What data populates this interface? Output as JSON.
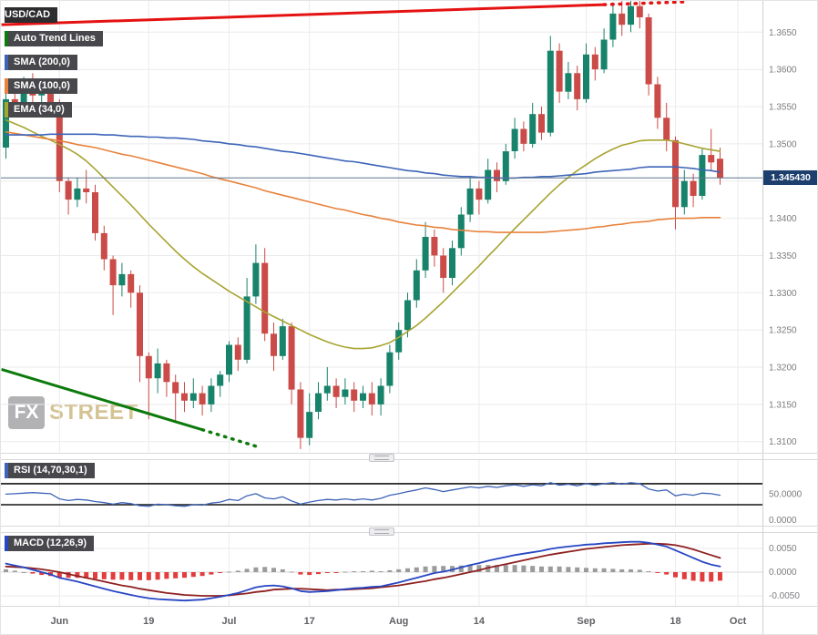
{
  "watermark": {
    "fx": "FX",
    "street": "STREET"
  },
  "colors": {
    "candle_up": "#17836a",
    "candle_down": "#ca4b47",
    "sma200": "#3d64b8",
    "sma100": "#e8823c",
    "ema34": "#a8a432",
    "trend_resistance": "#e51212",
    "trend_support": "#0c7a0c",
    "rsi_line": "#3d64b8",
    "rsi_level": "#141414",
    "macd_line": "#2746c4",
    "macd_signal": "#8f2020",
    "hist_pos": "#9b9b9b",
    "hist_neg": "#e23c3c",
    "price_line": "#5b748c",
    "tag_bg": "#1d3f6e",
    "grid": "#ebebee",
    "axis_text": "#7c7c80",
    "time_text": "#606065"
  },
  "chart_data": {
    "type": "candlestick",
    "symbol": "USD/CAD",
    "current_price": "1.345430",
    "current_price_value": 1.34543,
    "legend_items": [
      {
        "label": "USD/CAD",
        "bar": null,
        "bg": "#2d2d30"
      },
      {
        "label": "Auto Trend Lines",
        "bar": "#0c7a0c",
        "bg": "#48484c"
      },
      {
        "label": "SMA (200,0)",
        "bar": "#3d64b8",
        "bg": "#48484c"
      },
      {
        "label": "SMA (100,0)",
        "bar": "#e8823c",
        "bg": "#48484c"
      },
      {
        "label": "EMA (34,0)",
        "bar": "#a8a432",
        "bg": "#48484c"
      }
    ],
    "y_ticks": [
      "1.3650",
      "1.3600",
      "1.3550",
      "1.3500",
      "1.3450",
      "1.3400",
      "1.3350",
      "1.3300",
      "1.3250",
      "1.3200",
      "1.3150",
      "1.3100"
    ],
    "x_ticks": [
      {
        "label": "Jun",
        "bar": 6
      },
      {
        "label": "19",
        "bar": 16
      },
      {
        "label": "Jul",
        "bar": 25
      },
      {
        "label": "17",
        "bar": 34
      },
      {
        "label": "Aug",
        "bar": 44
      },
      {
        "label": "14",
        "bar": 53
      },
      {
        "label": "Sep",
        "bar": 65
      },
      {
        "label": "18",
        "bar": 75
      },
      {
        "label": "Oct",
        "bar": 82
      }
    ],
    "price_range": [
      1.3085,
      1.3692
    ],
    "candles": [
      [
        1.3495,
        1.358,
        1.348,
        1.356
      ],
      [
        1.356,
        1.3585,
        1.354,
        1.355
      ],
      [
        1.355,
        1.359,
        1.3545,
        1.358
      ],
      [
        1.358,
        1.3595,
        1.3555,
        1.3565
      ],
      [
        1.3565,
        1.3585,
        1.355,
        1.3575
      ],
      [
        1.3575,
        1.3585,
        1.3545,
        1.3555
      ],
      [
        1.3555,
        1.356,
        1.3435,
        1.345
      ],
      [
        1.345,
        1.3455,
        1.3405,
        1.3425
      ],
      [
        1.3425,
        1.3455,
        1.3415,
        1.344
      ],
      [
        1.344,
        1.3465,
        1.342,
        1.3435
      ],
      [
        1.3435,
        1.3445,
        1.337,
        1.338
      ],
      [
        1.338,
        1.339,
        1.333,
        1.3345
      ],
      [
        1.3345,
        1.335,
        1.327,
        1.331
      ],
      [
        1.331,
        1.334,
        1.3295,
        1.3325
      ],
      [
        1.3325,
        1.333,
        1.328,
        1.33
      ],
      [
        1.33,
        1.331,
        1.318,
        1.3215
      ],
      [
        1.3215,
        1.322,
        1.313,
        1.3185
      ],
      [
        1.3185,
        1.3225,
        1.3165,
        1.3205
      ],
      [
        1.3205,
        1.321,
        1.316,
        1.318
      ],
      [
        1.318,
        1.319,
        1.3125,
        1.3165
      ],
      [
        1.3165,
        1.318,
        1.314,
        1.3155
      ],
      [
        1.3155,
        1.3185,
        1.3145,
        1.3165
      ],
      [
        1.3165,
        1.3175,
        1.3135,
        1.315
      ],
      [
        1.315,
        1.3185,
        1.314,
        1.3175
      ],
      [
        1.3175,
        1.3195,
        1.316,
        1.319
      ],
      [
        1.319,
        1.3235,
        1.318,
        1.323
      ],
      [
        1.323,
        1.324,
        1.3195,
        1.321
      ],
      [
        1.321,
        1.332,
        1.3205,
        1.3295
      ],
      [
        1.3295,
        1.3365,
        1.3285,
        1.334
      ],
      [
        1.334,
        1.336,
        1.3235,
        1.3245
      ],
      [
        1.3245,
        1.326,
        1.3195,
        1.3215
      ],
      [
        1.3215,
        1.3265,
        1.321,
        1.3255
      ],
      [
        1.3255,
        1.326,
        1.315,
        1.317
      ],
      [
        1.317,
        1.318,
        1.309,
        1.3105
      ],
      [
        1.3105,
        1.3165,
        1.3095,
        1.314
      ],
      [
        1.314,
        1.318,
        1.313,
        1.3165
      ],
      [
        1.3165,
        1.32,
        1.3155,
        1.3175
      ],
      [
        1.3175,
        1.3185,
        1.3145,
        1.316
      ],
      [
        1.316,
        1.3185,
        1.315,
        1.317
      ],
      [
        1.317,
        1.318,
        1.314,
        1.3155
      ],
      [
        1.3155,
        1.3175,
        1.3145,
        1.3165
      ],
      [
        1.3165,
        1.318,
        1.3135,
        1.315
      ],
      [
        1.315,
        1.3185,
        1.3135,
        1.3175
      ],
      [
        1.3175,
        1.323,
        1.3165,
        1.322
      ],
      [
        1.322,
        1.326,
        1.321,
        1.325
      ],
      [
        1.325,
        1.33,
        1.324,
        1.329
      ],
      [
        1.329,
        1.3345,
        1.328,
        1.333
      ],
      [
        1.333,
        1.3395,
        1.332,
        1.3375
      ],
      [
        1.3375,
        1.3385,
        1.3335,
        1.335
      ],
      [
        1.335,
        1.336,
        1.33,
        1.332
      ],
      [
        1.332,
        1.337,
        1.331,
        1.336
      ],
      [
        1.336,
        1.3415,
        1.335,
        1.3405
      ],
      [
        1.3405,
        1.3455,
        1.3395,
        1.344
      ],
      [
        1.344,
        1.345,
        1.3405,
        1.3425
      ],
      [
        1.3425,
        1.348,
        1.342,
        1.3465
      ],
      [
        1.3465,
        1.3475,
        1.3435,
        1.345
      ],
      [
        1.345,
        1.35,
        1.3445,
        1.349
      ],
      [
        1.349,
        1.3535,
        1.348,
        1.352
      ],
      [
        1.352,
        1.353,
        1.349,
        1.35
      ],
      [
        1.35,
        1.3555,
        1.3495,
        1.354
      ],
      [
        1.354,
        1.355,
        1.3505,
        1.3515
      ],
      [
        1.3515,
        1.3645,
        1.351,
        1.3625
      ],
      [
        1.3625,
        1.3635,
        1.3555,
        1.357
      ],
      [
        1.357,
        1.361,
        1.356,
        1.3595
      ],
      [
        1.3595,
        1.3605,
        1.3545,
        1.356
      ],
      [
        1.356,
        1.3635,
        1.3555,
        1.362
      ],
      [
        1.362,
        1.363,
        1.3585,
        1.36
      ],
      [
        1.36,
        1.3655,
        1.3595,
        1.364
      ],
      [
        1.364,
        1.369,
        1.363,
        1.3675
      ],
      [
        1.3675,
        1.3695,
        1.3645,
        1.366
      ],
      [
        1.366,
        1.37,
        1.365,
        1.3685
      ],
      [
        1.3685,
        1.3695,
        1.3655,
        1.367
      ],
      [
        1.367,
        1.3675,
        1.3565,
        1.358
      ],
      [
        1.358,
        1.359,
        1.352,
        1.3535
      ],
      [
        1.3535,
        1.3555,
        1.349,
        1.3505
      ],
      [
        1.3505,
        1.351,
        1.3385,
        1.3415
      ],
      [
        1.3415,
        1.3465,
        1.3405,
        1.345
      ],
      [
        1.345,
        1.346,
        1.3415,
        1.343
      ],
      [
        1.343,
        1.3495,
        1.3425,
        1.3485
      ],
      [
        1.3485,
        1.352,
        1.3465,
        1.3475
      ],
      [
        1.348,
        1.3495,
        1.3445,
        1.34543
      ]
    ],
    "sma200": [
      1.3512,
      1.3512,
      1.3512,
      1.3512,
      1.3512,
      1.3513,
      1.3513,
      1.3513,
      1.3513,
      1.3513,
      1.3513,
      1.3512,
      1.3512,
      1.3511,
      1.351,
      1.351,
      1.3509,
      1.3509,
      1.3508,
      1.3508,
      1.3507,
      1.3506,
      1.3504,
      1.3503,
      1.3502,
      1.35,
      1.3499,
      1.3497,
      1.3496,
      1.3494,
      1.3492,
      1.349,
      1.3489,
      1.3487,
      1.3485,
      1.3483,
      1.3481,
      1.3479,
      1.3477,
      1.3476,
      1.3474,
      1.3472,
      1.347,
      1.3468,
      1.3466,
      1.3464,
      1.3463,
      1.3461,
      1.346,
      1.3458,
      1.3457,
      1.3456,
      1.3456,
      1.3455,
      1.3455,
      1.3454,
      1.3454,
      1.3454,
      1.3455,
      1.3455,
      1.3456,
      1.3456,
      1.3457,
      1.3458,
      1.3459,
      1.346,
      1.3462,
      1.3463,
      1.3464,
      1.3465,
      1.3466,
      1.3468,
      1.3469,
      1.3469,
      1.3469,
      1.3469,
      1.3468,
      1.3467,
      1.3465,
      1.3464,
      1.3462
    ],
    "sma100": [
      1.3516,
      1.3514,
      1.3512,
      1.351,
      1.3508,
      1.3506,
      1.3504,
      1.3502,
      1.3499,
      1.3497,
      1.3495,
      1.3492,
      1.3489,
      1.3486,
      1.3484,
      1.3481,
      1.3478,
      1.3475,
      1.3472,
      1.3469,
      1.3466,
      1.3463,
      1.346,
      1.3456,
      1.3453,
      1.345,
      1.3447,
      1.3444,
      1.3441,
      1.3437,
      1.3434,
      1.3431,
      1.3428,
      1.3425,
      1.3422,
      1.3419,
      1.3416,
      1.3413,
      1.3411,
      1.3408,
      1.3405,
      1.3403,
      1.34,
      1.3398,
      1.3395,
      1.3393,
      1.3391,
      1.339,
      1.3388,
      1.3387,
      1.3385,
      1.3384,
      1.3383,
      1.3382,
      1.3382,
      1.3381,
      1.3381,
      1.3381,
      1.3381,
      1.3381,
      1.3381,
      1.3382,
      1.3383,
      1.3384,
      1.3385,
      1.3386,
      1.3388,
      1.3389,
      1.3391,
      1.3392,
      1.3394,
      1.3395,
      1.3396,
      1.3398,
      1.3399,
      1.34,
      1.34,
      1.34,
      1.3401,
      1.3401,
      1.3401
    ],
    "ema34": [
      1.3532,
      1.3527,
      1.3522,
      1.3516,
      1.351,
      1.3505,
      1.3499,
      1.3493,
      1.3486,
      1.3477,
      1.3466,
      1.3454,
      1.3442,
      1.343,
      1.3418,
      1.3405,
      1.3392,
      1.338,
      1.3368,
      1.3356,
      1.3345,
      1.3335,
      1.3326,
      1.3318,
      1.331,
      1.3302,
      1.3295,
      1.3288,
      1.3281,
      1.3274,
      1.3268,
      1.3262,
      1.3256,
      1.325,
      1.3244,
      1.3239,
      1.3234,
      1.323,
      1.3227,
      1.3225,
      1.3225,
      1.3226,
      1.3229,
      1.3233,
      1.324,
      1.3248,
      1.3256,
      1.3266,
      1.3277,
      1.3288,
      1.33,
      1.3312,
      1.3324,
      1.3336,
      1.3349,
      1.3361,
      1.3374,
      1.3386,
      1.3398,
      1.341,
      1.3422,
      1.3434,
      1.3445,
      1.3455,
      1.3464,
      1.3472,
      1.348,
      1.3487,
      1.3493,
      1.3498,
      1.3501,
      1.3504,
      1.3505,
      1.3505,
      1.3505,
      1.3503,
      1.35,
      1.3497,
      1.3494,
      1.3492,
      1.349
    ],
    "trend_lines": [
      {
        "name": "resistance",
        "color": "#e51212",
        "solid": [
          [
            -0.5,
            1.366
          ],
          [
            67,
            1.3687
          ]
        ],
        "dashed": [
          [
            67,
            1.3687
          ],
          [
            76.5,
            1.3691
          ]
        ]
      },
      {
        "name": "support",
        "color": "#0c7a0c",
        "solid": [
          [
            -0.5,
            1.3197
          ],
          [
            22,
            1.3116
          ]
        ],
        "dashed": [
          [
            22,
            1.3116
          ],
          [
            28.5,
            1.3092
          ]
        ]
      }
    ],
    "rsi": {
      "label": "RSI (14,70,30,1)",
      "levels": [
        70,
        30
      ],
      "axis_labels": [
        {
          "text": "50.0000",
          "value": 50
        },
        {
          "text": "0.0000",
          "value": 0
        }
      ],
      "values": [
        50,
        51,
        52,
        53,
        52,
        51,
        41,
        38,
        40,
        39,
        36,
        34,
        31,
        34,
        32,
        28,
        27,
        31,
        30,
        28,
        27,
        30,
        29,
        33,
        35,
        40,
        38,
        47,
        51,
        43,
        41,
        45,
        37,
        31,
        35,
        38,
        40,
        39,
        41,
        39,
        41,
        39,
        42,
        48,
        51,
        55,
        58,
        62,
        59,
        55,
        58,
        61,
        64,
        62,
        65,
        63,
        66,
        68,
        65,
        68,
        66,
        72,
        67,
        69,
        66,
        70,
        67,
        70,
        72,
        69,
        72,
        70,
        60,
        56,
        58,
        47,
        50,
        48,
        52,
        51,
        48
      ]
    },
    "macd": {
      "label": "MACD (12,26,9)",
      "axis_labels": [
        {
          "text": "0.0050",
          "value": 0.005
        },
        {
          "text": "0.0000",
          "value": 0
        },
        {
          "text": "-0.0050",
          "value": -0.005
        }
      ],
      "line": [
        0.0018,
        0.0014,
        0.001,
        0.0005,
        0.0,
        -0.0005,
        -0.0012,
        -0.0016,
        -0.002,
        -0.0025,
        -0.003,
        -0.0035,
        -0.004,
        -0.0044,
        -0.0048,
        -0.0052,
        -0.0055,
        -0.0057,
        -0.0058,
        -0.0059,
        -0.006,
        -0.0059,
        -0.0058,
        -0.0055,
        -0.0052,
        -0.0048,
        -0.0044,
        -0.0038,
        -0.0032,
        -0.0029,
        -0.0028,
        -0.003,
        -0.0034,
        -0.004,
        -0.0042,
        -0.0041,
        -0.004,
        -0.0038,
        -0.0036,
        -0.0034,
        -0.0033,
        -0.0031,
        -0.003,
        -0.0026,
        -0.0022,
        -0.0017,
        -0.0012,
        -0.0007,
        -0.0002,
        0.0001,
        0.0005,
        0.001,
        0.0015,
        0.0019,
        0.0024,
        0.0028,
        0.0032,
        0.0036,
        0.0039,
        0.0042,
        0.0045,
        0.0049,
        0.0052,
        0.0054,
        0.0056,
        0.0058,
        0.0059,
        0.0061,
        0.0062,
        0.0063,
        0.0064,
        0.0064,
        0.0062,
        0.0058,
        0.0054,
        0.0046,
        0.0038,
        0.003,
        0.0022,
        0.0016,
        0.0012
      ],
      "signal": [
        0.0012,
        0.0011,
        0.001,
        0.0008,
        0.0006,
        0.0003,
        0.0,
        -0.0004,
        -0.0008,
        -0.0012,
        -0.0016,
        -0.002,
        -0.0024,
        -0.0028,
        -0.0031,
        -0.0035,
        -0.0038,
        -0.0041,
        -0.0044,
        -0.0046,
        -0.0048,
        -0.0049,
        -0.005,
        -0.005,
        -0.005,
        -0.0049,
        -0.0047,
        -0.0045,
        -0.0042,
        -0.004,
        -0.0037,
        -0.0036,
        -0.0035,
        -0.0035,
        -0.0036,
        -0.0037,
        -0.0038,
        -0.0037,
        -0.0037,
        -0.0036,
        -0.0035,
        -0.0034,
        -0.0032,
        -0.003,
        -0.0028,
        -0.0025,
        -0.0022,
        -0.0019,
        -0.0015,
        -0.0012,
        -0.0008,
        -0.0004,
        0.0,
        0.0004,
        0.0009,
        0.0013,
        0.0017,
        0.0021,
        0.0025,
        0.0029,
        0.0033,
        0.0037,
        0.004,
        0.0043,
        0.0046,
        0.0049,
        0.0051,
        0.0053,
        0.0055,
        0.0057,
        0.0058,
        0.0059,
        0.006,
        0.006,
        0.0059,
        0.0057,
        0.0053,
        0.0048,
        0.0042,
        0.0036,
        0.003
      ],
      "hist": [
        0.0006,
        0.0003,
        0.0,
        -0.0003,
        -0.0006,
        -0.0008,
        -0.0012,
        -0.0012,
        -0.0012,
        -0.0013,
        -0.0014,
        -0.0015,
        -0.0016,
        -0.0016,
        -0.0017,
        -0.0017,
        -0.0017,
        -0.0016,
        -0.0014,
        -0.0013,
        -0.0012,
        -0.001,
        -0.0008,
        -0.0005,
        -0.0002,
        0.0001,
        0.0003,
        0.0007,
        0.001,
        0.0011,
        0.0009,
        0.0006,
        0.0001,
        -0.0005,
        -0.0006,
        -0.0004,
        -0.0002,
        -0.0001,
        0.0001,
        0.0002,
        0.0002,
        0.0003,
        0.0002,
        0.0004,
        0.0006,
        0.0008,
        0.001,
        0.0012,
        0.0013,
        0.0013,
        0.0013,
        0.0014,
        0.0015,
        0.0015,
        0.0015,
        0.0015,
        0.0015,
        0.0015,
        0.0014,
        0.0013,
        0.0012,
        0.0012,
        0.0012,
        0.0011,
        0.001,
        0.0009,
        0.0008,
        0.0008,
        0.0007,
        0.0006,
        0.0006,
        0.0005,
        0.0002,
        -0.0002,
        -0.0005,
        -0.0011,
        -0.0015,
        -0.0018,
        -0.002,
        -0.002,
        -0.0018
      ]
    }
  }
}
